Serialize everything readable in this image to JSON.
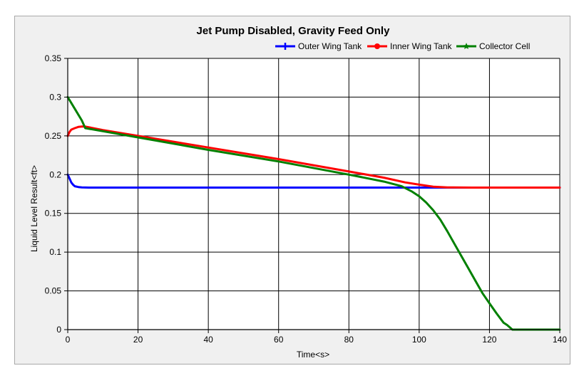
{
  "chart_data": {
    "type": "line",
    "title": "Jet Pump Disabled, Gravity Feed Only",
    "xlabel": "Time<s>",
    "ylabel": "Liquid Level Result<ft>",
    "xlim": [
      0,
      140
    ],
    "ylim": [
      0,
      0.35
    ],
    "xticks": [
      0,
      20,
      40,
      60,
      80,
      100,
      120,
      140
    ],
    "xtick_labels": [
      "0",
      "20",
      "40",
      "60",
      "80",
      "100",
      "120",
      "140"
    ],
    "yticks": [
      0,
      0.05,
      0.1,
      0.15,
      0.2,
      0.25,
      0.3,
      0.35
    ],
    "ytick_labels": [
      "0",
      "0.05",
      "0.1",
      "0.15",
      "0.2",
      "0.25",
      "0.3",
      "0.35"
    ],
    "grid": true,
    "legend_position": "top-right",
    "series": [
      {
        "name": "Outer Wing Tank",
        "color": "#0000ff",
        "marker": "plus",
        "x": [
          0,
          0.5,
          1,
          1.5,
          2,
          3,
          4,
          6,
          10,
          20,
          40,
          60,
          80,
          100,
          120,
          140
        ],
        "y": [
          0.2,
          0.195,
          0.19,
          0.187,
          0.185,
          0.184,
          0.1835,
          0.1833,
          0.1833,
          0.1833,
          0.1833,
          0.1833,
          0.1833,
          0.1833,
          0.1833,
          0.1833
        ]
      },
      {
        "name": "Inner Wing Tank",
        "color": "#ff0000",
        "marker": "circle",
        "x": [
          0,
          0.5,
          1,
          2,
          3,
          4,
          5,
          10,
          20,
          40,
          60,
          80,
          90,
          96,
          100,
          104,
          108,
          115,
          125,
          140
        ],
        "y": [
          0.25,
          0.255,
          0.258,
          0.26,
          0.2615,
          0.262,
          0.262,
          0.2575,
          0.25,
          0.235,
          0.22,
          0.204,
          0.196,
          0.19,
          0.187,
          0.1845,
          0.1835,
          0.1833,
          0.1833,
          0.1833
        ]
      },
      {
        "name": "Collector Cell",
        "color": "#008000",
        "marker": "star",
        "x": [
          0,
          2,
          4,
          5,
          10,
          20,
          40,
          60,
          80,
          90,
          95,
          98,
          100,
          102,
          104,
          106,
          108,
          110,
          112,
          114,
          116,
          118,
          120,
          122,
          124,
          125,
          126,
          126.5,
          130,
          140
        ],
        "y": [
          0.3,
          0.285,
          0.27,
          0.26,
          0.256,
          0.248,
          0.232,
          0.217,
          0.2,
          0.191,
          0.185,
          0.178,
          0.172,
          0.164,
          0.154,
          0.142,
          0.127,
          0.111,
          0.095,
          0.079,
          0.063,
          0.047,
          0.034,
          0.021,
          0.009,
          0.006,
          0.002,
          0.0,
          0.0,
          0.0
        ]
      }
    ]
  }
}
